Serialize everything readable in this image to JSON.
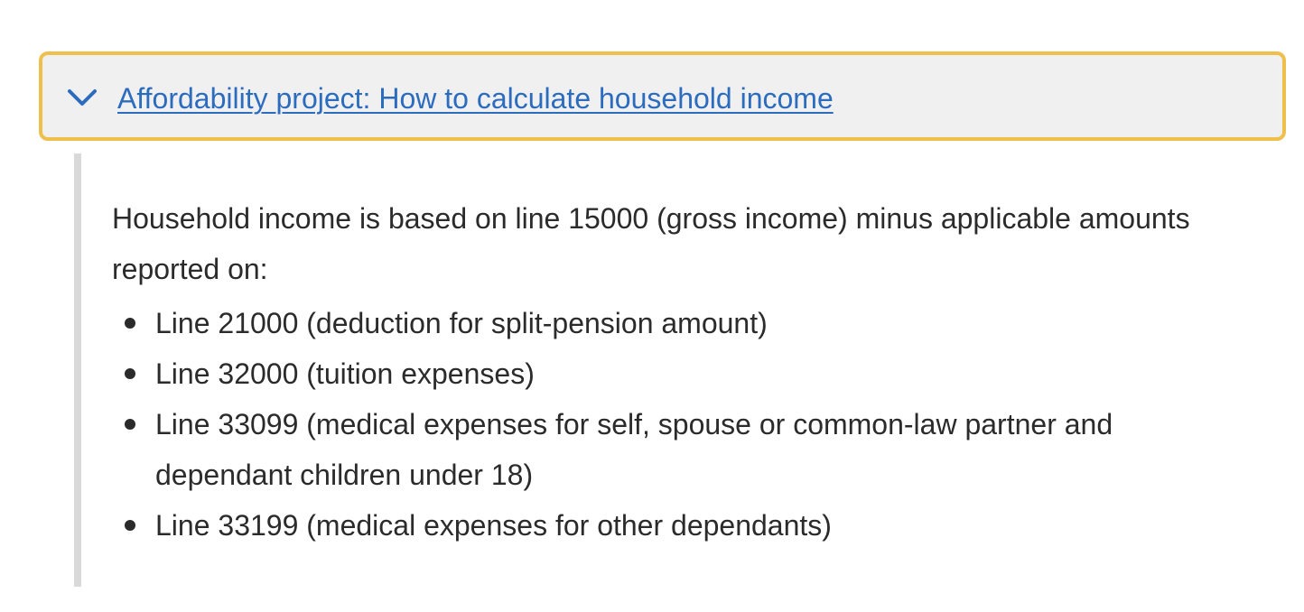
{
  "disclosure": {
    "expanded": true,
    "chevron_icon": "chevron-down-icon",
    "title": "Affordability project: How to calculate household income",
    "link_color": "#2c6cbf",
    "focus_border_color": "#efbf4b"
  },
  "content": {
    "intro": "Household income is based on line 15000 (gross income) minus applicable amounts reported on:",
    "items": [
      {
        "text": "Line 21000 (deduction for split-pension amount)"
      },
      {
        "text": "Line 32000 (tuition expenses)"
      },
      {
        "text": "Line 33099 (medical expenses for self, spouse or common-law partner and dependant children under 18)"
      },
      {
        "text": "Line 33199 (medical expenses for other dependants)"
      }
    ]
  }
}
